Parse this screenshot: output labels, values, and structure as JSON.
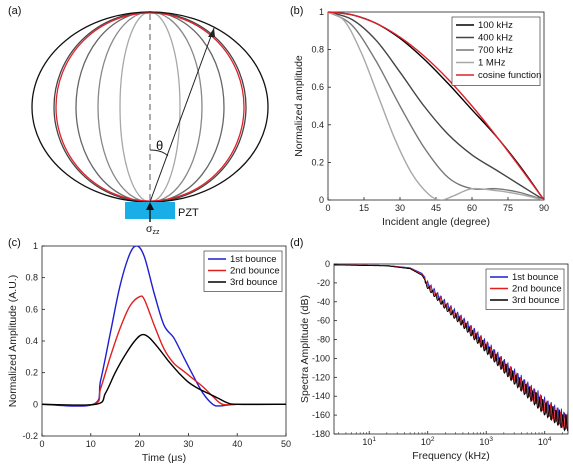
{
  "panels": {
    "a": "(a)",
    "b": "(b)",
    "c": "(c)",
    "d": "(d)"
  },
  "diagram_a": {
    "theta_label": "θ",
    "pzt_label": "PZT",
    "sigma_label": "σ",
    "sigma_sub": "zz",
    "pzt_color": "#1aaee6"
  },
  "chart_data": [
    {
      "id": "b",
      "type": "line",
      "xlabel": "Incident angle (degree)",
      "ylabel": "Normalized amplitude",
      "xlim": [
        0,
        90
      ],
      "ylim": [
        0,
        1
      ],
      "xticks": [
        0,
        15,
        30,
        45,
        60,
        75,
        90
      ],
      "yticks": [
        0,
        0.2,
        0.4,
        0.6,
        0.8,
        1
      ],
      "grid": false,
      "legend": "top-right",
      "series": [
        {
          "name": "100 kHz",
          "color": "#000000",
          "x": [
            0,
            10,
            20,
            30,
            40,
            50,
            60,
            70,
            80,
            90
          ],
          "y": [
            1.0,
            0.985,
            0.94,
            0.86,
            0.75,
            0.62,
            0.48,
            0.34,
            0.18,
            0.0
          ]
        },
        {
          "name": "400 kHz",
          "color": "#444444",
          "x": [
            0,
            10,
            20,
            30,
            40,
            50,
            60,
            70,
            80,
            90
          ],
          "y": [
            1.0,
            0.96,
            0.85,
            0.68,
            0.5,
            0.35,
            0.24,
            0.16,
            0.08,
            0.0
          ]
        },
        {
          "name": "700 kHz",
          "color": "#777777",
          "x": [
            0,
            10,
            20,
            30,
            40,
            50,
            60,
            70,
            80,
            90
          ],
          "y": [
            1.0,
            0.93,
            0.74,
            0.5,
            0.28,
            0.12,
            0.06,
            0.06,
            0.04,
            0.0
          ]
        },
        {
          "name": "1 MHz",
          "color": "#a8a8a8",
          "x": [
            0,
            7,
            14,
            21,
            28,
            35,
            42,
            47,
            52,
            60,
            70,
            80,
            90
          ],
          "y": [
            1.0,
            0.95,
            0.78,
            0.55,
            0.32,
            0.14,
            0.03,
            0.0,
            0.02,
            0.06,
            0.05,
            0.03,
            0.0
          ]
        },
        {
          "name": "cosine function",
          "color": "#e0202a",
          "x": [
            0,
            10,
            20,
            30,
            40,
            50,
            60,
            70,
            80,
            90
          ],
          "y": [
            1.0,
            0.985,
            0.94,
            0.866,
            0.766,
            0.643,
            0.5,
            0.342,
            0.174,
            0.0
          ]
        }
      ]
    },
    {
      "id": "c",
      "type": "line",
      "xlabel": "Time (μs)",
      "ylabel": "Normalized Amplitude (A.U.)",
      "xlim": [
        0,
        50
      ],
      "ylim": [
        -0.2,
        1
      ],
      "xticks": [
        0,
        10,
        20,
        30,
        40,
        50
      ],
      "yticks": [
        -0.2,
        0,
        0.2,
        0.4,
        0.6,
        0.8,
        1
      ],
      "grid": false,
      "legend": "top-right",
      "series": [
        {
          "name": "1st bounce",
          "color": "#1f1fd0",
          "x": [
            0,
            10.5,
            12,
            14,
            16,
            18,
            19.5,
            21,
            23,
            25,
            27,
            29,
            31,
            33,
            35,
            36.5,
            40,
            50
          ],
          "y": [
            0,
            0,
            0.15,
            0.45,
            0.75,
            0.95,
            1.0,
            0.93,
            0.7,
            0.5,
            0.42,
            0.3,
            0.18,
            0.07,
            0.0,
            -0.01,
            0,
            0
          ]
        },
        {
          "name": "2nd bounce",
          "color": "#e02020",
          "x": [
            0,
            10.5,
            12,
            14,
            16,
            18,
            20,
            21,
            23,
            25,
            27,
            29,
            31,
            33,
            35,
            37,
            40,
            50
          ],
          "y": [
            0,
            0,
            0.1,
            0.3,
            0.48,
            0.62,
            0.68,
            0.66,
            0.5,
            0.35,
            0.26,
            0.21,
            0.16,
            0.11,
            0.05,
            0.0,
            0,
            0
          ]
        },
        {
          "name": "3rd bounce",
          "color": "#000000",
          "x": [
            0,
            11,
            13,
            15,
            17,
            19,
            20.5,
            22,
            24,
            26,
            28,
            30,
            32,
            34,
            36,
            38,
            40,
            50
          ],
          "y": [
            0,
            0,
            0.07,
            0.2,
            0.31,
            0.4,
            0.44,
            0.42,
            0.35,
            0.27,
            0.2,
            0.14,
            0.1,
            0.07,
            0.04,
            0.01,
            0,
            0
          ]
        }
      ]
    },
    {
      "id": "d",
      "type": "line",
      "xlabel": "Frequency (kHz)",
      "ylabel": "Spectra Amplitude (dB)",
      "xscale": "log",
      "xlim": [
        2.5,
        25000
      ],
      "ylim": [
        -180,
        0
      ],
      "xticks": [
        10,
        100,
        1000,
        10000
      ],
      "xtick_labels": [
        "10",
        "10",
        "10",
        "10"
      ],
      "xtick_exponents": [
        "1",
        "2",
        "3",
        "4"
      ],
      "yticks": [
        -180,
        -160,
        -140,
        -120,
        -100,
        -80,
        -60,
        -40,
        -20,
        0
      ],
      "grid": false,
      "legend": "top-right",
      "series": [
        {
          "name": "1st bounce",
          "color": "#1f1fd0",
          "x": [
            2.5,
            20,
            50,
            80,
            100,
            140,
            200,
            400,
            1000,
            3000,
            10000,
            22000
          ],
          "y": [
            -1,
            -1.5,
            -4,
            -10,
            -18,
            -28,
            -38,
            -55,
            -80,
            -110,
            -140,
            -155
          ]
        },
        {
          "name": "2nd bounce",
          "color": "#e02020",
          "x": [
            2.5,
            20,
            50,
            80,
            100,
            140,
            200,
            400,
            1000,
            3000,
            10000,
            22000
          ],
          "y": [
            -1,
            -1.5,
            -4.5,
            -11,
            -20,
            -30,
            -40,
            -57,
            -82,
            -112,
            -142,
            -157
          ]
        },
        {
          "name": "3rd bounce",
          "color": "#000000",
          "x": [
            2.5,
            20,
            50,
            80,
            100,
            140,
            200,
            400,
            1000,
            3000,
            10000,
            22000
          ],
          "y": [
            -1,
            -2,
            -5,
            -12,
            -22,
            -32,
            -42,
            -59,
            -84,
            -114,
            -144,
            -158
          ]
        }
      ]
    }
  ]
}
